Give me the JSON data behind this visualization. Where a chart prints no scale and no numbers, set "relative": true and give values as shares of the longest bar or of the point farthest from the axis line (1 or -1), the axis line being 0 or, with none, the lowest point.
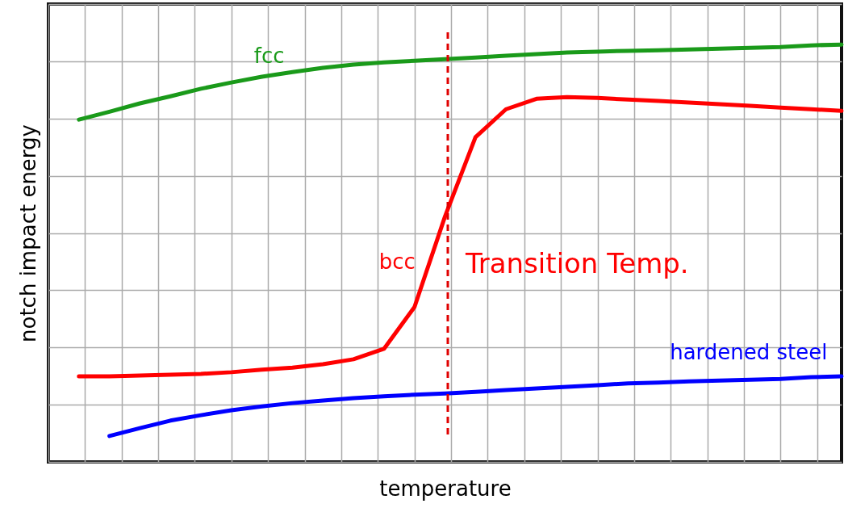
{
  "chart_data": {
    "type": "line",
    "relative": true,
    "xlabel": "temperature",
    "ylabel": "notch impact energy",
    "grid": true,
    "line_style": "solid",
    "marker": "none",
    "categories": [
      null,
      null,
      null,
      null,
      null,
      null,
      null,
      null,
      null,
      null,
      null,
      null,
      null,
      null,
      null,
      null,
      null,
      null,
      null,
      null,
      null,
      null,
      null,
      null,
      null,
      null
    ],
    "series": [
      {
        "name": "fcc",
        "color": "#1a9a1a",
        "values": [
          0.82,
          0.839,
          0.859,
          0.876,
          0.894,
          0.909,
          0.923,
          0.934,
          0.944,
          0.952,
          0.957,
          0.961,
          0.965,
          0.969,
          0.973,
          0.977,
          0.981,
          0.983,
          0.985,
          0.986,
          0.988,
          0.99,
          0.992,
          0.994,
          0.998,
          1
        ]
      },
      {
        "name": "bcc",
        "color": "#ff0000",
        "values": [
          0.205,
          0.205,
          0.207,
          0.209,
          0.211,
          0.215,
          0.221,
          0.226,
          0.234,
          0.246,
          0.271,
          0.371,
          0.588,
          0.778,
          0.845,
          0.87,
          0.874,
          0.872,
          0.868,
          0.865,
          0.861,
          0.857,
          0.853,
          0.849,
          0.845,
          0.841
        ]
      },
      {
        "name": "hardened steel",
        "color": "#0000ff",
        "values": [
          null,
          0.062,
          0.081,
          0.099,
          0.112,
          0.124,
          0.133,
          0.141,
          0.147,
          0.153,
          0.157,
          0.161,
          0.164,
          0.168,
          0.172,
          0.176,
          0.18,
          0.184,
          0.188,
          0.19,
          0.193,
          0.195,
          0.197,
          0.199,
          0.203,
          0.205
        ]
      }
    ],
    "annotations": [
      "Transition Temp."
    ]
  }
}
